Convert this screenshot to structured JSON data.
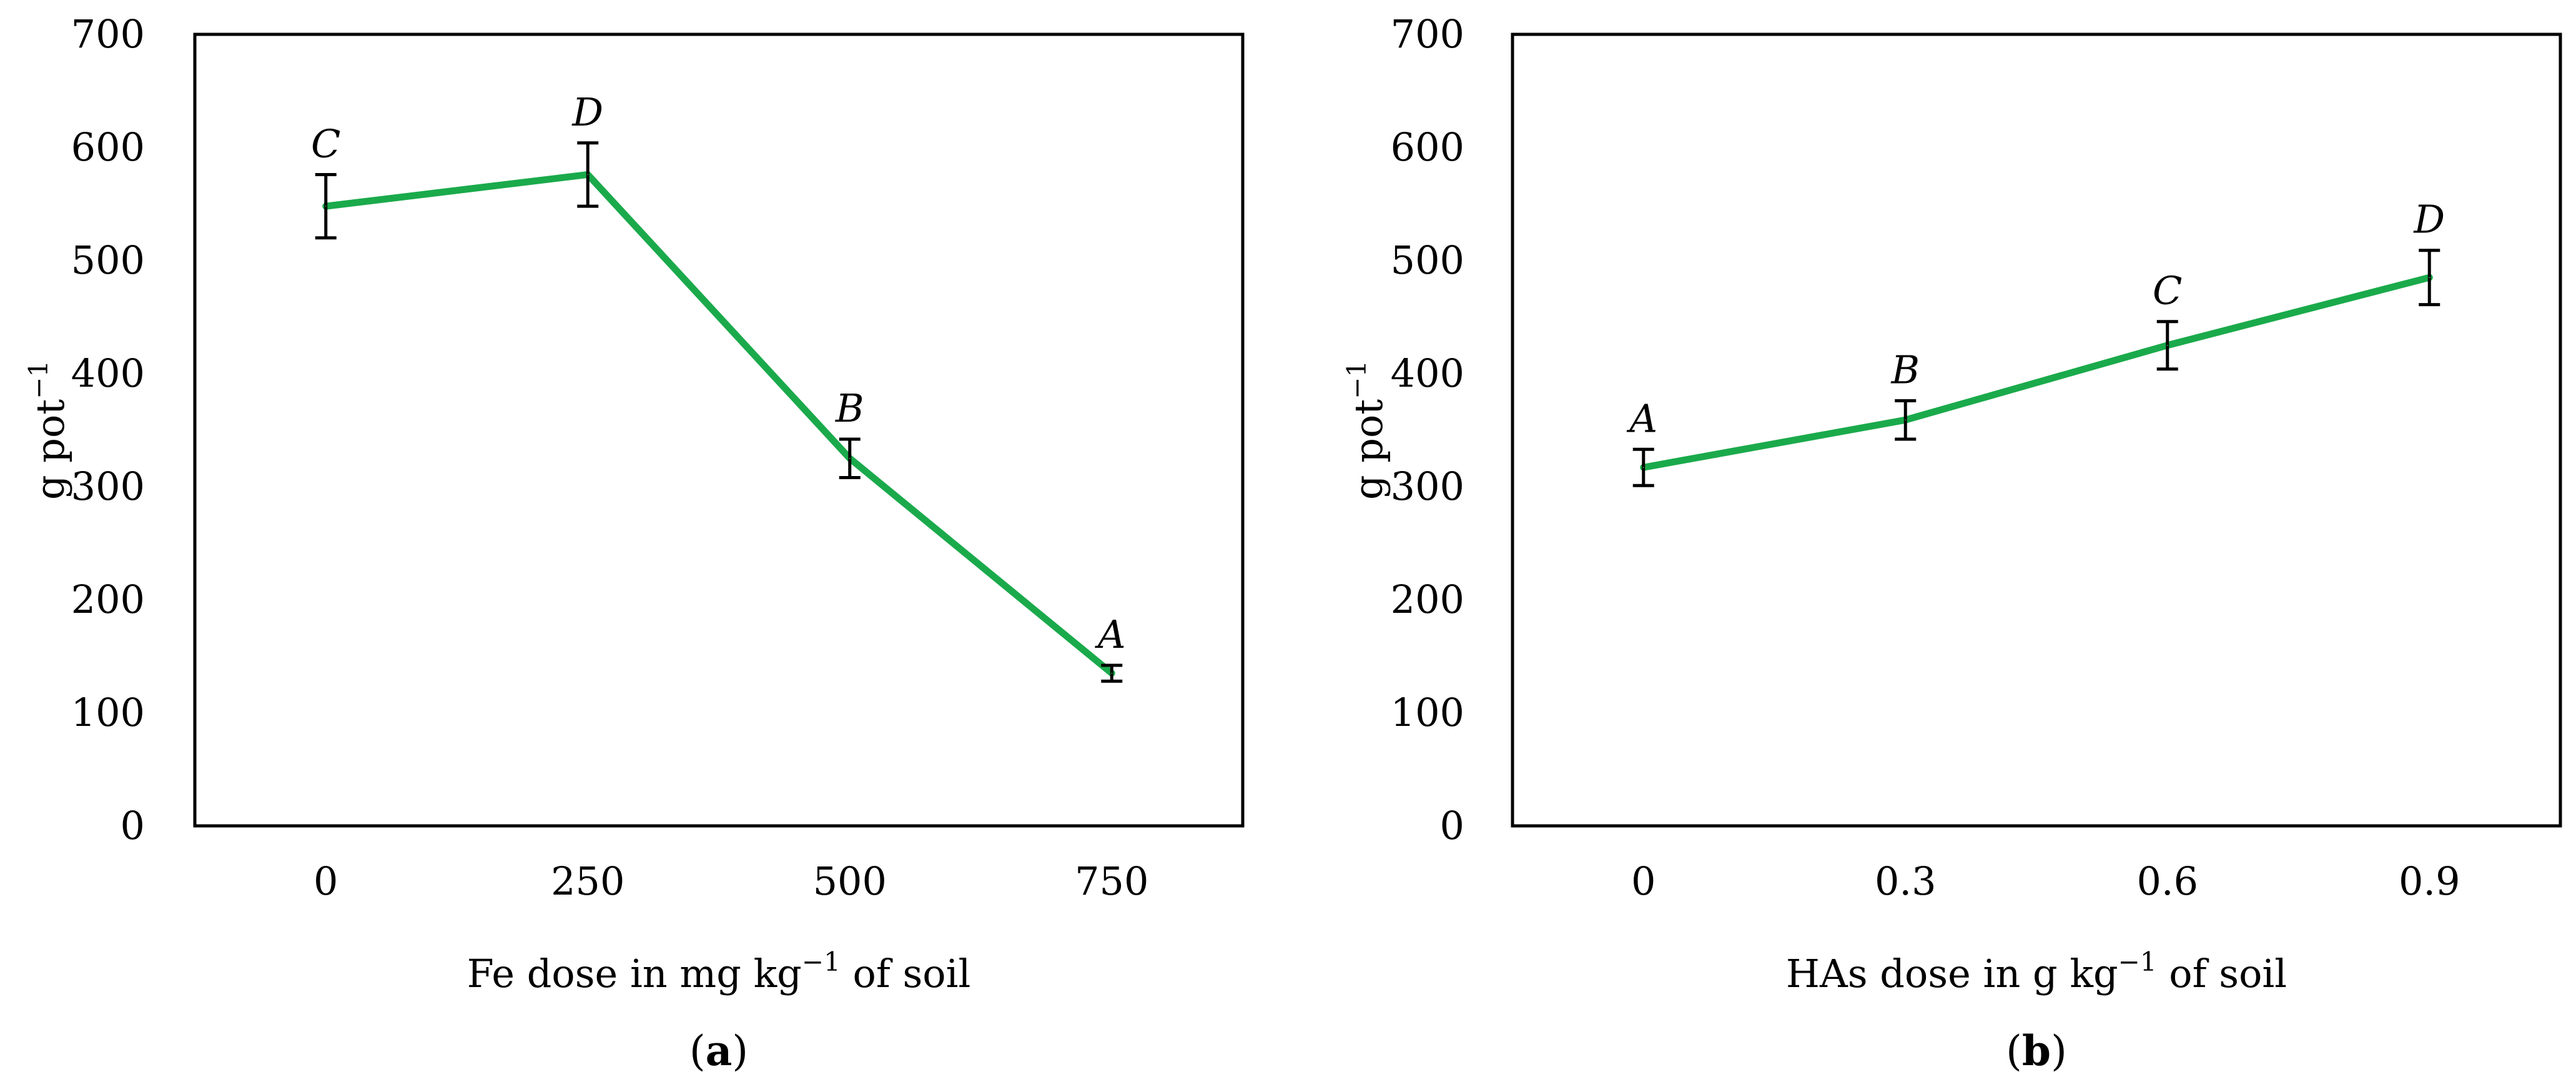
{
  "chart_data": [
    {
      "type": "line",
      "panel_label": "a",
      "ylabel": "g pot",
      "ylabel_sup": "−1",
      "xlabel_before": "Fe dose in mg kg",
      "xlabel_sup": "−1",
      "xlabel_after": " of soil",
      "x": [
        "0",
        "250",
        "500",
        "750"
      ],
      "series": [
        {
          "values": [
            548,
            576,
            325,
            135
          ],
          "errors": [
            28,
            28,
            17,
            7
          ]
        }
      ],
      "sig_letters": [
        "C",
        "D",
        "B",
        "A"
      ],
      "ylim": [
        0,
        700
      ],
      "yticks": [
        "0",
        "100",
        "200",
        "300",
        "400",
        "500",
        "600",
        "700"
      ],
      "grid": false
    },
    {
      "type": "line",
      "panel_label": "b",
      "ylabel": "g pot",
      "ylabel_sup": "−1",
      "xlabel_before": "HAs dose in g kg",
      "xlabel_sup": "−1",
      "xlabel_after": " of soil",
      "x": [
        "0",
        "0.3",
        "0.6",
        "0.9"
      ],
      "series": [
        {
          "values": [
            317,
            359,
            425,
            485
          ],
          "errors": [
            16,
            17,
            21,
            24
          ]
        }
      ],
      "sig_letters": [
        "A",
        "B",
        "C",
        "D"
      ],
      "ylim": [
        0,
        700
      ],
      "yticks": [
        "0",
        "100",
        "200",
        "300",
        "400",
        "500",
        "600",
        "700"
      ],
      "grid": false
    }
  ],
  "colors": {
    "line": "#1aaa4b",
    "axis": "#000000",
    "error_bar": "#000000"
  }
}
